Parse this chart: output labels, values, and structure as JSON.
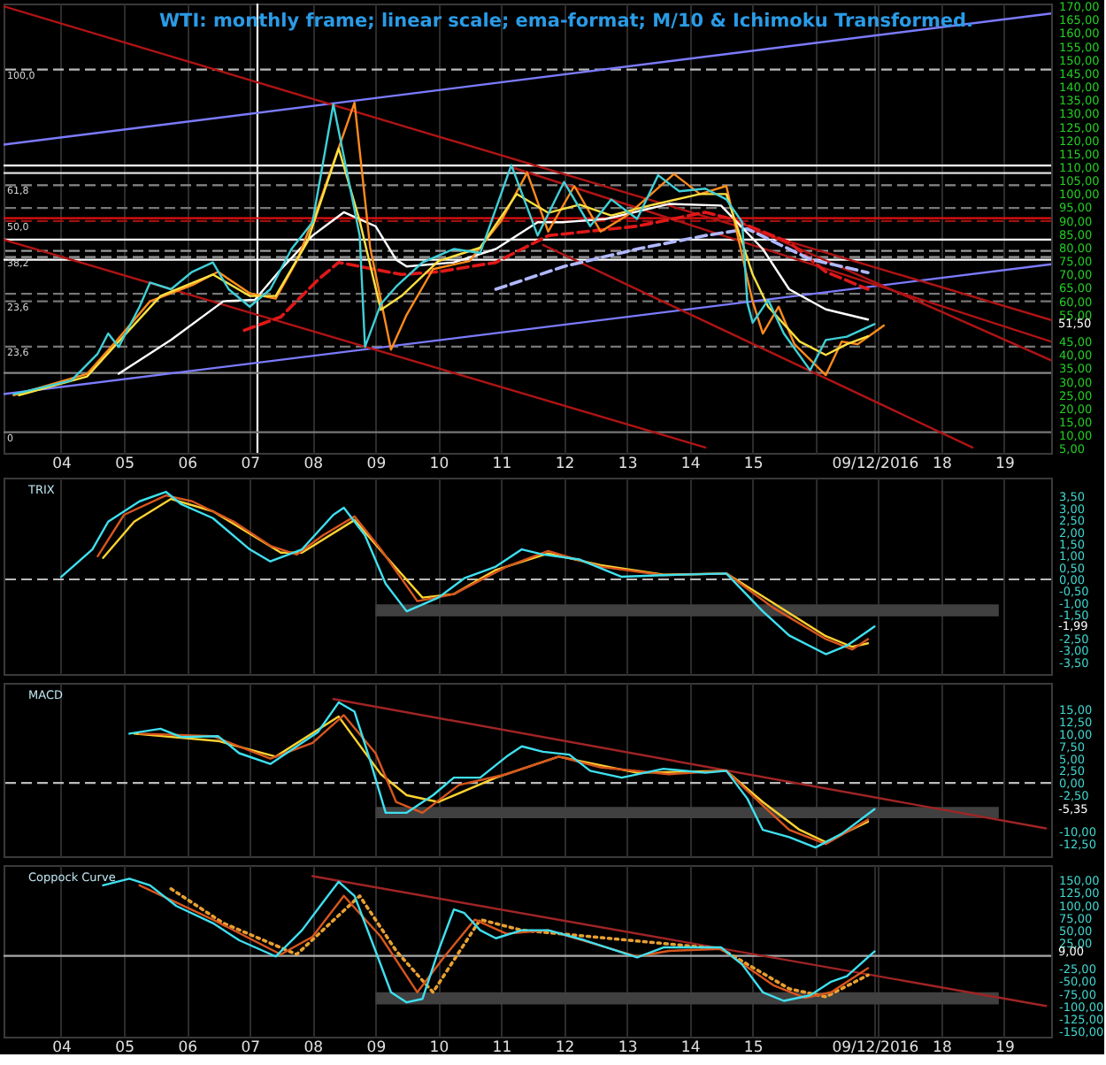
{
  "chart_data": [
    {
      "type": "line",
      "title": "WTI: monthly frame; linear scale; ema-format; M/10 & Ichimoku Transformed.",
      "xlim": [
        "2003-02-01",
        "2019-10-01"
      ],
      "ylim": [
        3.5,
        171
      ],
      "grid": "x",
      "xticks": [
        {
          "value": "2004-01-01",
          "label": "04"
        },
        {
          "value": "2005-01-01",
          "label": "05"
        },
        {
          "value": "2006-01-01",
          "label": "06"
        },
        {
          "value": "2007-01-01",
          "label": "07"
        },
        {
          "value": "2008-01-01",
          "label": "08"
        },
        {
          "value": "2009-01-01",
          "label": "09"
        },
        {
          "value": "2010-01-01",
          "label": "10"
        },
        {
          "value": "2011-01-01",
          "label": "11"
        },
        {
          "value": "2012-01-01",
          "label": "12"
        },
        {
          "value": "2013-01-01",
          "label": "13"
        },
        {
          "value": "2014-01-01",
          "label": "14"
        },
        {
          "value": "2015-01-01",
          "label": "15"
        },
        {
          "value": "2016-01-01",
          "label": null
        },
        {
          "value": "2016-12-09",
          "label": "09/12/2016"
        },
        {
          "value": "2017-01-01",
          "label": null
        },
        {
          "value": "2018-01-01",
          "label": "18"
        },
        {
          "value": "2019-01-01",
          "label": "19"
        }
      ],
      "yticks": [
        {
          "value": 5,
          "label": "5,00"
        },
        {
          "value": 10,
          "label": "10,00"
        },
        {
          "value": 15,
          "label": "15,00"
        },
        {
          "value": 20,
          "label": "20,00"
        },
        {
          "value": 25,
          "label": "25,00"
        },
        {
          "value": 30,
          "label": "30,00"
        },
        {
          "value": 35,
          "label": "35,00"
        },
        {
          "value": 40,
          "label": "40,00"
        },
        {
          "value": 45,
          "label": "45,00"
        },
        {
          "value": 55,
          "label": "55,00"
        },
        {
          "value": 60,
          "label": "60,00"
        },
        {
          "value": 65,
          "label": "65,00"
        },
        {
          "value": 70,
          "label": "70,00"
        },
        {
          "value": 75,
          "label": "75,00"
        },
        {
          "value": 80,
          "label": "80,00"
        },
        {
          "value": 85,
          "label": "85,00"
        },
        {
          "value": 90,
          "label": "90,00"
        },
        {
          "value": 95,
          "label": "95,00"
        },
        {
          "value": 100,
          "label": "100,00"
        },
        {
          "value": 105,
          "label": "105,00"
        },
        {
          "value": 110,
          "label": "110,00"
        },
        {
          "value": 115,
          "label": "115,00"
        },
        {
          "value": 120,
          "label": "120,00"
        },
        {
          "value": 125,
          "label": "125,00"
        },
        {
          "value": 130,
          "label": "130,00"
        },
        {
          "value": 135,
          "label": "135,00"
        },
        {
          "value": 140,
          "label": "140,00"
        },
        {
          "value": 145,
          "label": "145,00"
        },
        {
          "value": 150,
          "label": "150,00"
        },
        {
          "value": 155,
          "label": "155,00"
        },
        {
          "value": 160,
          "label": "160,00"
        },
        {
          "value": 165,
          "label": "165,00"
        },
        {
          "value": 170,
          "label": "170,00"
        }
      ],
      "ref_lines": [
        {
          "axis": "x",
          "value": "2007-02-15",
          "color": "#ffffff"
        },
        {
          "axis": "y",
          "value": 146.4,
          "color": "#bbbbbb",
          "line_style": "dashed"
        },
        {
          "axis": "y",
          "value": 110.6,
          "color": "#ffffff"
        },
        {
          "axis": "y",
          "value": 107.8,
          "color": "#dddddd"
        },
        {
          "axis": "y",
          "value": 103.3,
          "color": "#888888",
          "line_style": "dashed"
        },
        {
          "axis": "y",
          "value": 94.8,
          "color": "#777777",
          "line_style": "dashed"
        },
        {
          "axis": "y",
          "value": 91,
          "color": "#e01010"
        },
        {
          "axis": "y",
          "value": 89.9,
          "color": "#a01010",
          "line_style": "dashed"
        },
        {
          "axis": "y",
          "value": 83,
          "color": "#ffffff"
        },
        {
          "axis": "y",
          "value": 78.8,
          "color": "#999999",
          "line_style": "dashed"
        },
        {
          "axis": "y",
          "value": 76.5,
          "color": "#999999",
          "line_style": "dashed"
        },
        {
          "axis": "y",
          "value": 75.5,
          "color": "#ffffff"
        },
        {
          "axis": "y",
          "value": 62.8,
          "color": "#777777",
          "line_style": "dashed"
        },
        {
          "axis": "y",
          "value": 60,
          "color": "#777777",
          "line_style": "dashed"
        },
        {
          "axis": "y",
          "value": 43.1,
          "color": "#777777",
          "line_style": "dashed"
        },
        {
          "axis": "y",
          "value": 33.3,
          "color": "#888888"
        },
        {
          "axis": "y",
          "value": 11.2,
          "color": "#777777"
        }
      ],
      "series": [
        {
          "color": "#7b7bff",
          "x": [
            "2003-02",
            "2019-10"
          ],
          "values": [
            118.4,
            167.3
          ]
        },
        {
          "color": "#7b7bff",
          "x": [
            "2003-02",
            "2019-10"
          ],
          "values": [
            25.4,
            73.8
          ]
        },
        {
          "color": "#b01414",
          "x": [
            "2003-02",
            "2019-10"
          ],
          "values": [
            170,
            53
          ]
        },
        {
          "color": "#b01414",
          "x": [
            "2003-02",
            "2014-04"
          ],
          "values": [
            83,
            5.5
          ]
        },
        {
          "color": "#b01414",
          "x": [
            "2011-09",
            "2018-07"
          ],
          "values": [
            81,
            5.5
          ]
        },
        {
          "color": "#b01414",
          "x": [
            "2011-03",
            "2019-10"
          ],
          "values": [
            110,
            45
          ]
        },
        {
          "color": "#b01414",
          "x": [
            "2014-11",
            "2019-10"
          ],
          "values": [
            89,
            38
          ]
        },
        {
          "color": "#e01818",
          "line_style": "dashed",
          "x": [
            "2006-12",
            "2007-07",
            "2008-02",
            "2008-06",
            "2009-06",
            "2010-01",
            "2010-12",
            "2011-10",
            "2013-03",
            "2014-04",
            "2014-09",
            "2015-08",
            "2016-03",
            "2016-11"
          ],
          "values": [
            49.2,
            54.2,
            68,
            74.5,
            70,
            71,
            74.5,
            84.5,
            88,
            93.2,
            90.7,
            82,
            71,
            64.5
          ]
        },
        {
          "color": "#b0b8ff",
          "line_style": "dashed",
          "x": [
            "2010-12",
            "2012-01",
            "2013-03",
            "2014-04",
            "2014-12",
            "2015-12",
            "2016-11"
          ],
          "values": [
            64.5,
            73,
            79.5,
            84.5,
            87,
            75.7,
            70.7
          ]
        },
        {
          "color": "#ffffff",
          "x": [
            "2004-12",
            "2005-10",
            "2006-08",
            "2007-02",
            "2007-07",
            "2008-01",
            "2008-07",
            "2009-01",
            "2009-05",
            "2009-07",
            "2010-04",
            "2010-12",
            "2011-08",
            "2012-01",
            "2012-09",
            "2013-09",
            "2014-07",
            "2015-03",
            "2015-08",
            "2016-03",
            "2016-11"
          ],
          "values": [
            33,
            45.6,
            60,
            60.6,
            71.9,
            84.5,
            93.2,
            88,
            75.5,
            73,
            74.5,
            79.5,
            89.5,
            89.5,
            90.7,
            96.3,
            95.7,
            79.5,
            64.5,
            57,
            53.2
          ]
        },
        {
          "color": "#ff8a1c",
          "x": [
            "2003-04",
            "2004-06",
            "2004-11",
            "2005-06",
            "2006-02",
            "2006-07",
            "2007-01",
            "2007-06",
            "2007-10",
            "2008-02",
            "2008-09",
            "2008-12",
            "2009-04",
            "2009-07",
            "2009-12",
            "2010-07",
            "2011-01",
            "2011-06",
            "2011-10",
            "2012-03",
            "2012-08",
            "2013-01",
            "2013-10",
            "2014-03",
            "2014-08",
            "2015-01",
            "2015-03",
            "2015-06",
            "2015-09",
            "2016-03",
            "2016-06",
            "2016-09",
            "2017-02"
          ],
          "values": [
            25,
            33,
            44,
            60,
            66,
            71,
            63,
            61,
            75,
            95,
            134,
            80,
            42,
            55,
            72,
            75,
            90,
            108,
            86,
            103,
            86,
            92,
            107.5,
            100,
            103,
            60,
            48,
            58,
            44,
            32.5,
            45,
            44,
            51
          ]
        },
        {
          "color": "#ffe040",
          "x": [
            "2003-05",
            "2004-06",
            "2004-12",
            "2005-08",
            "2006-06",
            "2007-01",
            "2007-06",
            "2007-12",
            "2008-06",
            "2008-10",
            "2009-02",
            "2009-06",
            "2010-01",
            "2010-09",
            "2011-04",
            "2011-10",
            "2012-04",
            "2012-10",
            "2013-06",
            "2014-03",
            "2014-08",
            "2015-01",
            "2015-04",
            "2015-10",
            "2016-03",
            "2016-07",
            "2016-11"
          ],
          "values": [
            25,
            32,
            45,
            62,
            70,
            62,
            62,
            82,
            117,
            90,
            56.8,
            62,
            75,
            80,
            100,
            93,
            96,
            92,
            96,
            100,
            100,
            70,
            58,
            45,
            40,
            44,
            47
          ]
        },
        {
          "color": "#3fd0d8",
          "x": [
            "2003-04",
            "2004-03",
            "2004-08",
            "2004-10",
            "2004-12",
            "2005-04",
            "2005-06",
            "2005-10",
            "2006-02",
            "2006-06",
            "2006-09",
            "2007-01",
            "2007-05",
            "2007-09",
            "2008-01",
            "2008-05",
            "2008-10",
            "2008-11",
            "2009-02",
            "2009-05",
            "2009-10",
            "2010-04",
            "2010-09",
            "2011-03",
            "2011-08",
            "2012-01",
            "2012-06",
            "2012-10",
            "2013-03",
            "2013-07",
            "2013-11",
            "2014-04",
            "2014-08",
            "2014-11",
            "2014-12",
            "2015-01",
            "2015-04",
            "2015-07",
            "2015-12",
            "2016-03",
            "2016-07",
            "2016-12-09"
          ],
          "values": [
            25.4,
            30.5,
            40.5,
            48,
            43,
            58,
            67,
            64.5,
            71,
            74.5,
            64.5,
            58,
            64.5,
            79.5,
            89.5,
            133.5,
            84.5,
            43,
            59,
            65.5,
            74.5,
            79.5,
            78,
            110.8,
            84.5,
            104.5,
            88,
            98,
            90.7,
            107,
            101,
            102,
            98,
            89.5,
            59.5,
            52,
            60.5,
            48,
            34.3,
            45.6,
            46.8,
            51.5
          ]
        }
      ],
      "annotations": [
        "51,50",
        {
          "text": "100,0",
          "x": "2003-02-01",
          "y": 146.4
        },
        {
          "text": "61,8",
          "x": "2003-02-01",
          "y": 103.3
        },
        {
          "text": "50,0",
          "x": "2003-02-01",
          "y": 89.9
        },
        {
          "text": "38,2",
          "x": "2003-02-01",
          "y": 76.5
        },
        {
          "text": "23,6",
          "x": "2003-02-01",
          "y": 60
        },
        {
          "text": "23,6",
          "x": "2003-02-01",
          "y": 43.1
        },
        {
          "text": "0",
          "x": "2003-02-01",
          "y": 11.2
        }
      ]
    },
    {
      "type": "line",
      "title": "TRIX",
      "xlim": [
        "2003-02-01",
        "2019-10-01"
      ],
      "ylim": [
        -4.0,
        4.3
      ],
      "grid": "x",
      "tick_labels": "y",
      "xticks": [
        "2004-01-01",
        "2005-01-01",
        "2006-01-01",
        "2007-01-01",
        "2008-01-01",
        "2009-01-01",
        "2010-01-01",
        "2011-01-01",
        "2012-01-01",
        "2013-01-01",
        "2014-01-01",
        "2015-01-01",
        "2016-01-01",
        "2017-01-01",
        "2018-01-01",
        "2019-01-01"
      ],
      "yticks": [
        {
          "value": 3.5,
          "label": "3,50"
        },
        {
          "value": 3.0,
          "label": "3,00"
        },
        {
          "value": 2.5,
          "label": "2,50"
        },
        {
          "value": 2.0,
          "label": "2,00"
        },
        {
          "value": 1.5,
          "label": "1,50"
        },
        {
          "value": 1.0,
          "label": "1,00"
        },
        {
          "value": 0.5,
          "label": "0,50"
        },
        {
          "value": 0,
          "label": "0,00"
        },
        {
          "value": -0.5,
          "label": "-0,50"
        },
        {
          "value": -1.0,
          "label": "-1,00"
        },
        {
          "value": -1.5,
          "label": "-1,50"
        },
        {
          "value": -2.5,
          "label": "-2,50"
        },
        {
          "value": -3.0,
          "label": "-3,00"
        },
        {
          "value": -3.5,
          "label": "-3,50"
        }
      ],
      "ref_lines": [
        {
          "axis": "y",
          "value": 0,
          "color": "#bbbbbb",
          "line_style": "dashed"
        }
      ],
      "series": [
        {
          "type": "area",
          "color": "#404040",
          "x": [
            "2009-01",
            "2018-12"
          ],
          "values": [
            null,
            null
          ],
          "lower": [
            -1.56,
            -1.56
          ],
          "upper": [
            -1.06,
            -1.06
          ]
        },
        {
          "color": "#ffd230",
          "x": [
            "2004-09",
            "2005-03",
            "2005-10",
            "2006-06",
            "2007-07",
            "2007-11",
            "2008-09",
            "2009-03",
            "2009-10",
            "2010-04",
            "2010-12",
            "2011-10",
            "2012-08",
            "2013-08",
            "2014-08",
            "2015-05",
            "2016-03",
            "2016-08",
            "2016-11"
          ],
          "values": [
            0.91,
            2.44,
            3.4,
            2.88,
            1.13,
            1.13,
            2.51,
            0.98,
            -0.77,
            -0.62,
            0.4,
            1.1,
            0.6,
            0.2,
            0.25,
            -1.0,
            -2.4,
            -2.85,
            -2.7
          ]
        },
        {
          "color": "#d8561e",
          "x": [
            "2004-08",
            "2005-01",
            "2005-09",
            "2006-02",
            "2006-10",
            "2007-05",
            "2007-10",
            "2008-03",
            "2008-09",
            "2009-02",
            "2009-09",
            "2010-04",
            "2011-02",
            "2011-10",
            "2012-08",
            "2013-08",
            "2014-08",
            "2015-05",
            "2016-03",
            "2016-08",
            "2016-11"
          ],
          "values": [
            0.98,
            2.73,
            3.55,
            3.3,
            2.44,
            1.42,
            1.05,
            1.86,
            2.66,
            1.27,
            -0.92,
            -0.62,
            0.54,
            1.2,
            0.54,
            0.18,
            0.25,
            -1.2,
            -2.52,
            -2.96,
            -2.52
          ]
        },
        {
          "color": "#3fe0f0",
          "x": [
            "2004-01",
            "2004-07",
            "2004-10",
            "2005-04",
            "2005-09",
            "2005-12",
            "2006-06",
            "2007-01",
            "2007-05",
            "2007-11",
            "2008-05",
            "2008-07",
            "2008-11",
            "2009-03",
            "2009-07",
            "2010-01",
            "2010-06",
            "2010-12",
            "2011-05",
            "2011-09",
            "2012-04",
            "2012-12",
            "2013-08",
            "2014-08",
            "2015-03",
            "2015-08",
            "2016-03",
            "2016-07",
            "2016-12-09"
          ],
          "values": [
            0.1,
            1.27,
            2.44,
            3.3,
            3.7,
            3.17,
            2.59,
            1.27,
            0.76,
            1.27,
            2.73,
            3.03,
            1.86,
            -0.19,
            -1.35,
            -0.77,
            0.05,
            0.54,
            1.27,
            1.05,
            0.84,
            0.11,
            0.18,
            0.25,
            -1.35,
            -2.37,
            -3.16,
            -2.8,
            -1.99
          ]
        }
      ],
      "annotations": [
        "-1,99"
      ]
    },
    {
      "type": "line",
      "title": "MACD",
      "xlim": [
        "2003-02-01",
        "2019-10-01"
      ],
      "ylim": [
        -15,
        20.5
      ],
      "grid": "x",
      "tick_labels": "y",
      "xticks": [
        "2004-01-01",
        "2005-01-01",
        "2006-01-01",
        "2007-01-01",
        "2008-01-01",
        "2009-01-01",
        "2010-01-01",
        "2011-01-01",
        "2012-01-01",
        "2013-01-01",
        "2014-01-01",
        "2015-01-01",
        "2016-01-01",
        "2017-01-01",
        "2018-01-01",
        "2019-01-01"
      ],
      "yticks": [
        {
          "value": 15,
          "label": "15,00"
        },
        {
          "value": 12.5,
          "label": "12,50"
        },
        {
          "value": 10,
          "label": "10,00"
        },
        {
          "value": 7.5,
          "label": "7,50"
        },
        {
          "value": 5,
          "label": "5,00"
        },
        {
          "value": 2.5,
          "label": "2,50"
        },
        {
          "value": 0,
          "label": "0,00"
        },
        {
          "value": -2.5,
          "label": "-2,50"
        },
        {
          "value": -10,
          "label": "-10,00"
        },
        {
          "value": -12.5,
          "label": "-12,50"
        }
      ],
      "ref_lines": [
        {
          "axis": "y",
          "value": 0,
          "color": "#bbbbbb",
          "line_style": "dashed"
        }
      ],
      "series": [
        {
          "type": "area",
          "color": "#404040",
          "x": [
            "2009-01",
            "2018-12"
          ],
          "values": [
            null,
            null
          ],
          "lower": [
            -7.2,
            -7.2
          ],
          "upper": [
            -4.9,
            -4.9
          ]
        },
        {
          "color": "#a02424",
          "x": [
            "2008-05",
            "2019-09"
          ],
          "values": [
            17.2,
            -9.3
          ]
        },
        {
          "color": "#ffd230",
          "x": [
            "2005-03",
            "2006-07",
            "2007-06",
            "2008-06",
            "2009-02",
            "2009-07",
            "2010-01",
            "2010-12",
            "2011-12",
            "2013-03",
            "2014-08",
            "2015-03",
            "2015-10",
            "2016-03",
            "2016-11"
          ],
          "values": [
            10.1,
            8.6,
            5.4,
            13.6,
            1.8,
            -2.5,
            -3.9,
            1.1,
            5.4,
            2.1,
            2.5,
            -3.9,
            -9.6,
            -12.1,
            -7.9
          ]
        },
        {
          "color": "#d8561e",
          "x": [
            "2005-04",
            "2006-06",
            "2007-05",
            "2008-01",
            "2008-07",
            "2009-01",
            "2009-05",
            "2009-10",
            "2010-05",
            "2011-02",
            "2011-12",
            "2012-08",
            "2013-09",
            "2014-08",
            "2015-03",
            "2015-08",
            "2016-03",
            "2016-11"
          ],
          "values": [
            10.1,
            9.6,
            5.0,
            8.2,
            13.9,
            6.1,
            -3.9,
            -6.1,
            -0.4,
            1.8,
            5.4,
            3.2,
            1.8,
            2.5,
            -4.6,
            -9.6,
            -12.5,
            -7.5
          ]
        },
        {
          "color": "#3fe0f0",
          "x": [
            "2005-02",
            "2005-08",
            "2005-12",
            "2006-07",
            "2006-11",
            "2007-05",
            "2007-10",
            "2008-02",
            "2008-06",
            "2008-09",
            "2008-12",
            "2009-03",
            "2009-07",
            "2009-12",
            "2010-04",
            "2010-09",
            "2011-02",
            "2011-05",
            "2011-09",
            "2012-02",
            "2012-06",
            "2012-12",
            "2013-08",
            "2014-04",
            "2014-08",
            "2014-12",
            "2015-03",
            "2015-08",
            "2016-01",
            "2016-06",
            "2016-12-09"
          ],
          "values": [
            10.1,
            11.1,
            9.4,
            9.6,
            6.1,
            3.9,
            7.5,
            10.4,
            16.5,
            14.6,
            4.6,
            -6.1,
            -6.1,
            -2.5,
            1.1,
            1.1,
            5.4,
            7.5,
            6.4,
            5.8,
            2.5,
            1.1,
            2.9,
            2.1,
            2.5,
            -3.2,
            -9.6,
            -11.1,
            -13.2,
            -10.4,
            -5.35
          ]
        }
      ],
      "annotations": [
        "-5,35"
      ]
    },
    {
      "type": "line",
      "title": "Coppock Curve",
      "xlim": [
        "2003-02-01",
        "2019-10-01"
      ],
      "ylim": [
        -160,
        180
      ],
      "grid": "x",
      "xticks": [
        {
          "value": "2004-01-01",
          "label": "04"
        },
        {
          "value": "2005-01-01",
          "label": "05"
        },
        {
          "value": "2006-01-01",
          "label": "06"
        },
        {
          "value": "2007-01-01",
          "label": "07"
        },
        {
          "value": "2008-01-01",
          "label": "08"
        },
        {
          "value": "2009-01-01",
          "label": "09"
        },
        {
          "value": "2010-01-01",
          "label": "10"
        },
        {
          "value": "2011-01-01",
          "label": "11"
        },
        {
          "value": "2012-01-01",
          "label": "12"
        },
        {
          "value": "2013-01-01",
          "label": "13"
        },
        {
          "value": "2014-01-01",
          "label": "14"
        },
        {
          "value": "2015-01-01",
          "label": "15"
        },
        {
          "value": "2016-01-01",
          "label": null
        },
        {
          "value": "2016-12-09",
          "label": "09/12/2016"
        },
        {
          "value": "2017-01-01",
          "label": null
        },
        {
          "value": "2018-01-01",
          "label": "18"
        },
        {
          "value": "2019-01-01",
          "label": "19"
        }
      ],
      "yticks": [
        {
          "value": 150,
          "label": "150,00"
        },
        {
          "value": 125,
          "label": "125,00"
        },
        {
          "value": 100,
          "label": "100,00"
        },
        {
          "value": 75,
          "label": "75,00"
        },
        {
          "value": 50,
          "label": "50,00"
        },
        {
          "value": 25,
          "label": "25,00"
        },
        {
          "value": -25,
          "label": "-25,00"
        },
        {
          "value": -50,
          "label": "-50,00"
        },
        {
          "value": -75,
          "label": "-75,00"
        },
        {
          "value": -100,
          "label": "-100,00"
        },
        {
          "value": -125,
          "label": "-125,00"
        },
        {
          "value": -150,
          "label": "-150,00"
        }
      ],
      "ref_lines": [
        {
          "axis": "y",
          "value": 0,
          "color": "#aaaaaa"
        }
      ],
      "series": [
        {
          "type": "area",
          "color": "#404040",
          "x": [
            "2009-01",
            "2018-12"
          ],
          "values": [
            null,
            null
          ],
          "lower": [
            -96,
            -96
          ],
          "upper": [
            -72,
            -72
          ]
        },
        {
          "color": "#a02424",
          "x": [
            "2008-01",
            "2019-09"
          ],
          "values": [
            158,
            -99
          ]
        },
        {
          "color": "#e8a030",
          "line_style": "dotted",
          "x": [
            "2005-10",
            "2006-08",
            "2007-10",
            "2008-10",
            "2009-05",
            "2009-12",
            "2010-09",
            "2011-05",
            "2014-07",
            "2015-08",
            "2016-03",
            "2016-11"
          ],
          "values": [
            133,
            65,
            3,
            119,
            10,
            -72,
            72,
            51,
            14,
            -65,
            -81,
            -38
          ]
        },
        {
          "color": "#d8561e",
          "x": [
            "2005-04",
            "2006-06",
            "2007-07",
            "2008-01",
            "2008-07",
            "2009-02",
            "2009-09",
            "2010-02",
            "2010-08",
            "2011-02",
            "2011-10",
            "2013-03",
            "2013-09",
            "2014-07",
            "2015-05",
            "2015-11",
            "2016-04",
            "2016-11"
          ],
          "values": [
            140,
            72,
            3,
            38,
            119,
            38,
            -72,
            -3,
            72,
            44,
            51,
            -1,
            10,
            14,
            -58,
            -83,
            -72,
            -24
          ]
        },
        {
          "color": "#3fe0f0",
          "x": [
            "2004-09",
            "2005-02",
            "2005-06",
            "2005-11",
            "2006-06",
            "2006-11",
            "2007-06",
            "2007-11",
            "2008-03",
            "2008-06",
            "2008-09",
            "2009-01",
            "2009-04",
            "2009-07",
            "2009-10",
            "2010-01",
            "2010-04",
            "2010-06",
            "2010-09",
            "2010-12",
            "2011-05",
            "2011-10",
            "2012-05",
            "2013-03",
            "2013-08",
            "2014-07",
            "2014-11",
            "2015-03",
            "2015-07",
            "2015-12",
            "2016-04",
            "2016-07",
            "2016-12-09"
          ],
          "values": [
            140,
            153,
            140,
            99,
            65,
            31,
            -1,
            51,
            106,
            147,
            119,
            10,
            -72,
            -92,
            -85,
            10,
            92,
            85,
            51,
            35,
            51,
            51,
            31,
            -3,
            17,
            17,
            -17,
            -72,
            -89,
            -78,
            -51,
            -40,
            9
          ]
        }
      ],
      "annotations": [
        "9,00"
      ]
    }
  ]
}
